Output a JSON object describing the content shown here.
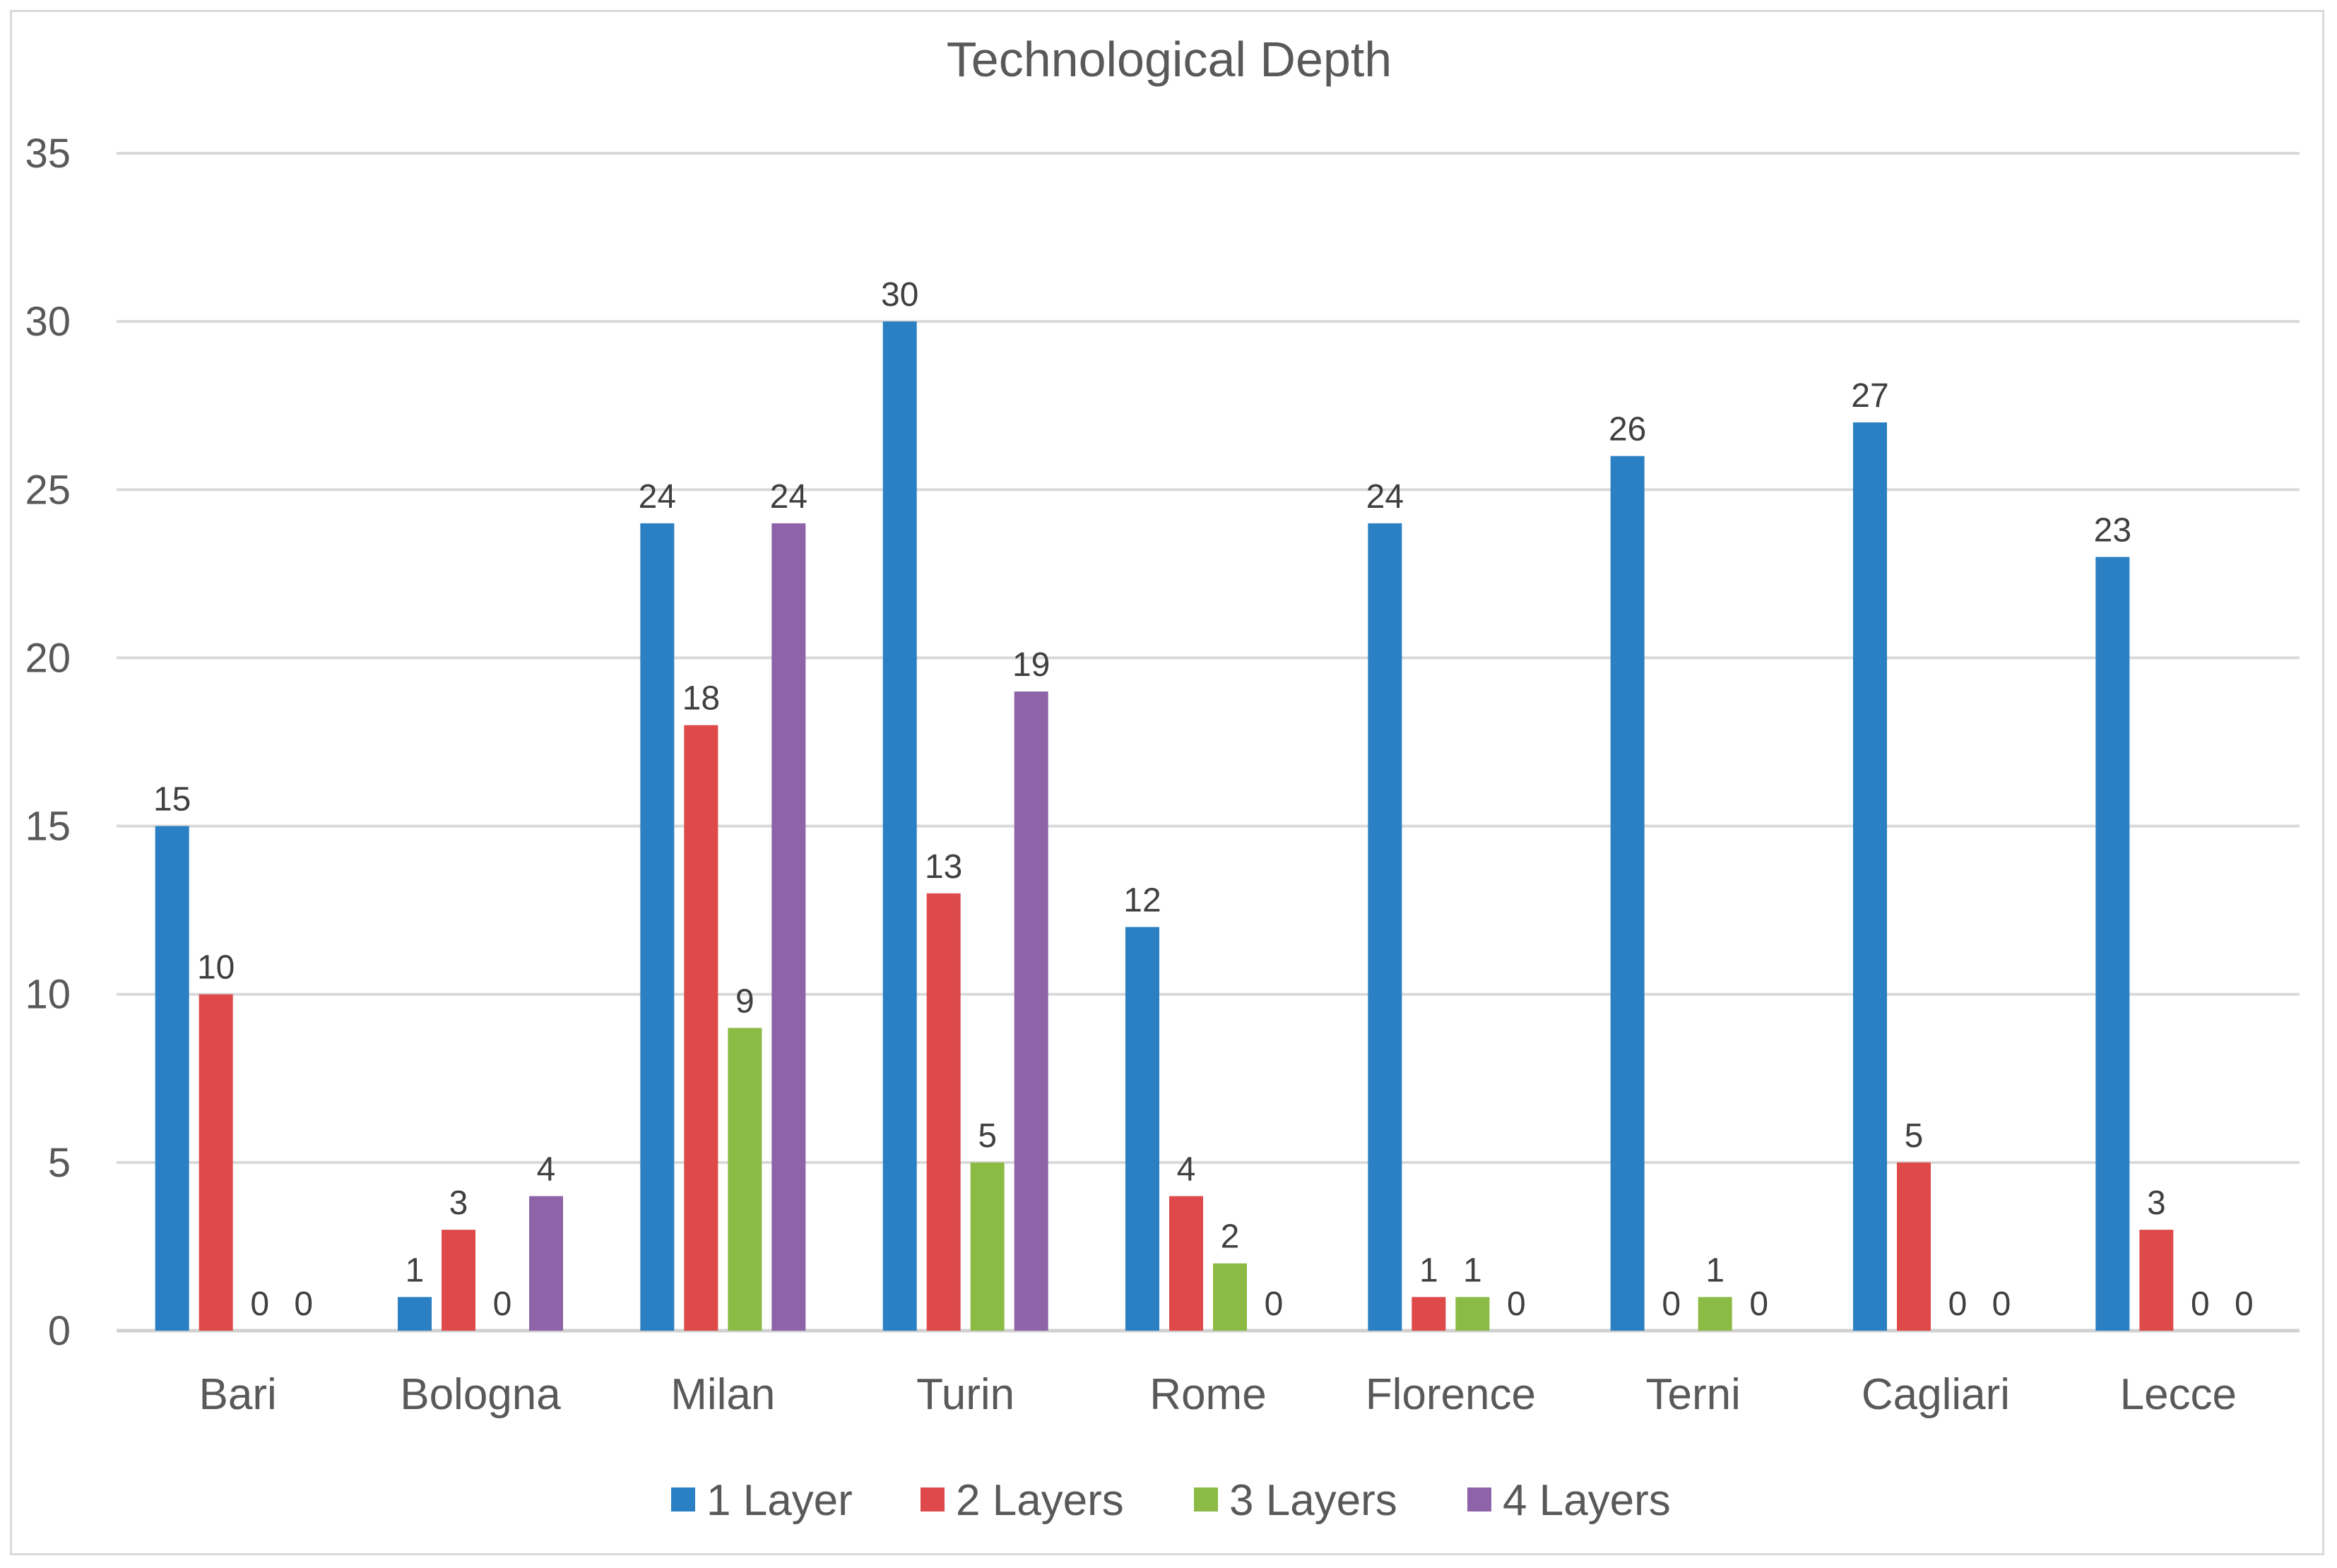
{
  "chart_data": {
    "type": "bar",
    "title": "Technological Depth",
    "xlabel": "",
    "ylabel": "",
    "ylim": [
      0,
      35
    ],
    "yticks": [
      0,
      5,
      10,
      15,
      20,
      25,
      30,
      35
    ],
    "grid": true,
    "legend_position": "bottom",
    "categories": [
      "Bari",
      "Bologna",
      "Milan",
      "Turin",
      "Rome",
      "Florence",
      "Terni",
      "Cagliari",
      "Lecce"
    ],
    "series": [
      {
        "name": "1 Layer",
        "color": "#2a80c2",
        "values": [
          15,
          1,
          24,
          30,
          12,
          24,
          26,
          27,
          23
        ]
      },
      {
        "name": "2 Layers",
        "color": "#de4a4a",
        "values": [
          10,
          3,
          18,
          13,
          4,
          1,
          0,
          5,
          3
        ]
      },
      {
        "name": "3 Layers",
        "color": "#8bbb45",
        "values": [
          0,
          0,
          9,
          5,
          2,
          1,
          1,
          0,
          0
        ]
      },
      {
        "name": "4 Layers",
        "color": "#8e63a8",
        "values": [
          0,
          4,
          24,
          19,
          0,
          0,
          0,
          0,
          0
        ]
      }
    ]
  }
}
